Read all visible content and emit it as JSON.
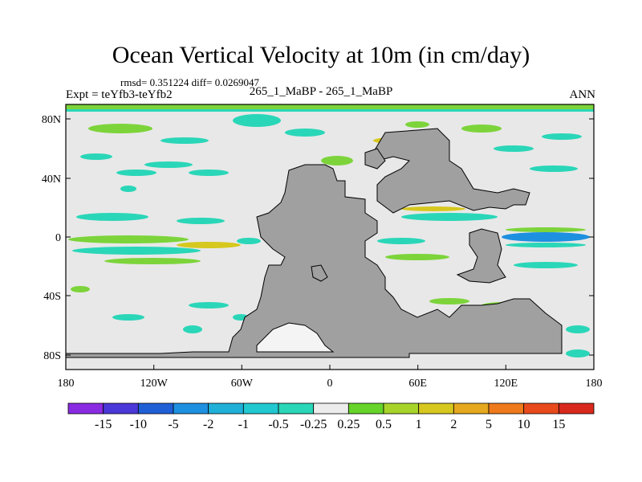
{
  "title": "Ocean Vertical Velocity at 10m (in cm/day)",
  "stats": "rmsd= 0.351224 diff= 0.0269047",
  "expt": "Expt = teYfb3-teYfb2",
  "case_label": "265_1_MaBP - 265_1_MaBP",
  "season": "ANN",
  "x_ticks": [
    "180",
    "120W",
    "60W",
    "0",
    "60E",
    "120E",
    "180"
  ],
  "y_ticks": [
    "80N",
    "40N",
    "0",
    "40S",
    "80S"
  ],
  "colorbar": {
    "labels": [
      "-15",
      "-10",
      "-5",
      "-2",
      "-1",
      "-0.5",
      "-0.25",
      "0.25",
      "0.5",
      "1",
      "2",
      "5",
      "10",
      "15"
    ],
    "colors": [
      "#8a2be2",
      "#4b38d8",
      "#1f5fd6",
      "#1e90e0",
      "#1fb0d8",
      "#22c8d0",
      "#2ad6b8",
      "#ececec",
      "#66d42a",
      "#a8d42a",
      "#d6c81e",
      "#e6a81e",
      "#ee7a1c",
      "#e84a1c",
      "#d8281c"
    ]
  },
  "map_colors": {
    "background": "#e8e8e8",
    "land": "#a0a0a0"
  }
}
